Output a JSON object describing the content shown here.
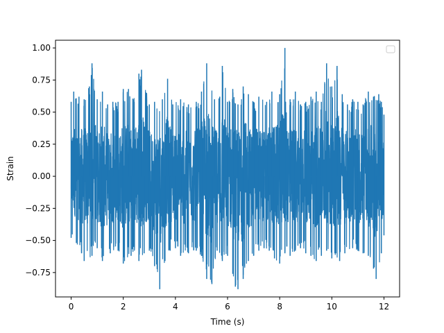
{
  "chart_data": {
    "type": "line",
    "title": "",
    "xlabel": "Time (s)",
    "ylabel": "Strain",
    "xlim": [
      -0.6,
      12.6
    ],
    "ylim": [
      -0.94,
      1.06
    ],
    "xticks": [
      0,
      2,
      4,
      6,
      8,
      10,
      12
    ],
    "xtick_labels": [
      "0",
      "2",
      "4",
      "6",
      "8",
      "10",
      "12"
    ],
    "yticks": [
      -0.75,
      -0.5,
      -0.25,
      0.0,
      0.25,
      0.5,
      0.75,
      1.0
    ],
    "ytick_labels": [
      "−0.75",
      "−0.50",
      "−0.25",
      "0.00",
      "0.25",
      "0.50",
      "0.75",
      "1.00"
    ],
    "grid": false,
    "legend": {
      "placement": "top-right",
      "entries": []
    },
    "series": [
      {
        "color": "#1f77b4",
        "x_range": [
          0,
          12
        ],
        "envelope_max": [
          [
            0.0,
            0.58
          ],
          [
            0.1,
            0.66
          ],
          [
            0.3,
            0.62
          ],
          [
            0.5,
            0.6
          ],
          [
            0.7,
            0.7
          ],
          [
            0.8,
            0.88
          ],
          [
            1.0,
            0.6
          ],
          [
            1.2,
            0.66
          ],
          [
            1.4,
            0.56
          ],
          [
            1.6,
            0.58
          ],
          [
            1.8,
            0.58
          ],
          [
            2.0,
            0.68
          ],
          [
            2.2,
            0.68
          ],
          [
            2.4,
            0.6
          ],
          [
            2.6,
            0.8
          ],
          [
            2.7,
            0.83
          ],
          [
            3.0,
            0.56
          ],
          [
            3.2,
            0.58
          ],
          [
            3.5,
            0.6
          ],
          [
            3.7,
            0.76
          ],
          [
            3.9,
            0.56
          ],
          [
            4.2,
            0.6
          ],
          [
            4.5,
            0.56
          ],
          [
            4.8,
            0.58
          ],
          [
            5.0,
            0.66
          ],
          [
            5.2,
            0.88
          ],
          [
            5.5,
            0.6
          ],
          [
            5.7,
            0.62
          ],
          [
            5.8,
            0.86
          ],
          [
            6.0,
            0.58
          ],
          [
            6.2,
            0.68
          ],
          [
            6.4,
            0.56
          ],
          [
            6.6,
            0.7
          ],
          [
            6.8,
            0.64
          ],
          [
            7.0,
            0.58
          ],
          [
            7.2,
            0.62
          ],
          [
            7.5,
            0.58
          ],
          [
            7.7,
            0.66
          ],
          [
            8.0,
            0.64
          ],
          [
            8.2,
            1.0
          ],
          [
            8.4,
            0.6
          ],
          [
            8.6,
            0.66
          ],
          [
            8.8,
            0.56
          ],
          [
            9.0,
            0.58
          ],
          [
            9.2,
            0.62
          ],
          [
            9.4,
            0.66
          ],
          [
            9.6,
            0.58
          ],
          [
            9.8,
            0.88
          ],
          [
            10.0,
            0.7
          ],
          [
            10.2,
            0.86
          ],
          [
            10.4,
            0.64
          ],
          [
            10.6,
            0.56
          ],
          [
            10.8,
            0.6
          ],
          [
            11.0,
            0.58
          ],
          [
            11.2,
            0.56
          ],
          [
            11.4,
            0.66
          ],
          [
            11.6,
            0.62
          ],
          [
            11.8,
            0.64
          ],
          [
            11.9,
            0.58
          ],
          [
            12.0,
            0.48
          ]
        ],
        "envelope_min": [
          [
            0.0,
            -0.48
          ],
          [
            0.2,
            -0.52
          ],
          [
            0.4,
            -0.6
          ],
          [
            0.5,
            -0.66
          ],
          [
            0.8,
            -0.62
          ],
          [
            1.0,
            -0.56
          ],
          [
            1.2,
            -0.66
          ],
          [
            1.5,
            -0.6
          ],
          [
            1.8,
            -0.58
          ],
          [
            2.0,
            -0.68
          ],
          [
            2.3,
            -0.62
          ],
          [
            2.6,
            -0.66
          ],
          [
            2.8,
            -0.6
          ],
          [
            3.0,
            -0.58
          ],
          [
            3.2,
            -0.7
          ],
          [
            3.4,
            -0.88
          ],
          [
            3.6,
            -0.66
          ],
          [
            3.8,
            -0.58
          ],
          [
            4.0,
            -0.56
          ],
          [
            4.2,
            -0.62
          ],
          [
            4.5,
            -0.6
          ],
          [
            4.8,
            -0.58
          ],
          [
            5.0,
            -0.62
          ],
          [
            5.2,
            -0.8
          ],
          [
            5.4,
            -0.84
          ],
          [
            5.6,
            -0.58
          ],
          [
            5.8,
            -0.66
          ],
          [
            6.0,
            -0.62
          ],
          [
            6.2,
            -0.76
          ],
          [
            6.3,
            -0.86
          ],
          [
            6.4,
            -0.88
          ],
          [
            6.6,
            -0.8
          ],
          [
            6.8,
            -0.66
          ],
          [
            7.0,
            -0.62
          ],
          [
            7.2,
            -0.58
          ],
          [
            7.4,
            -0.56
          ],
          [
            7.6,
            -0.58
          ],
          [
            7.8,
            -0.64
          ],
          [
            8.0,
            -0.68
          ],
          [
            8.2,
            -0.6
          ],
          [
            8.4,
            -0.62
          ],
          [
            8.6,
            -0.58
          ],
          [
            8.8,
            -0.56
          ],
          [
            9.0,
            -0.6
          ],
          [
            9.2,
            -0.62
          ],
          [
            9.4,
            -0.66
          ],
          [
            9.6,
            -0.62
          ],
          [
            9.8,
            -0.58
          ],
          [
            10.0,
            -0.64
          ],
          [
            10.3,
            -0.66
          ],
          [
            10.5,
            -0.6
          ],
          [
            10.8,
            -0.56
          ],
          [
            11.0,
            -0.58
          ],
          [
            11.2,
            -0.6
          ],
          [
            11.4,
            -0.62
          ],
          [
            11.6,
            -0.72
          ],
          [
            11.7,
            -0.8
          ],
          [
            11.9,
            -0.6
          ],
          [
            12.0,
            -0.46
          ]
        ]
      }
    ]
  }
}
